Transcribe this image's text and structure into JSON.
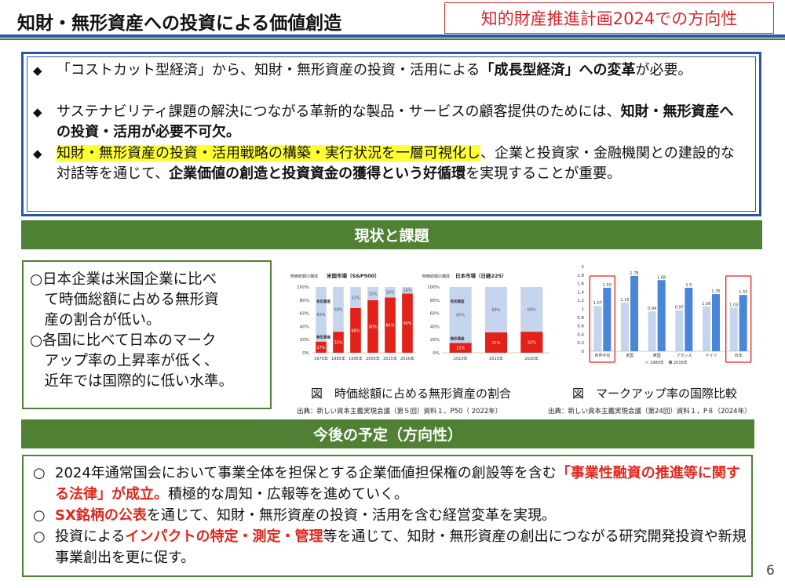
{
  "header": {
    "title": "知財・無形資産への投資による価値創造",
    "badge": "知的財産推進計画2024での方向性"
  },
  "summary": {
    "items": [
      {
        "bullet": "◆",
        "parts": [
          {
            "text": "「コストカット型経済」から、知財・無形資産の投資・活用による",
            "style": "normal"
          },
          {
            "text": "「成長型経済」への変革",
            "style": "bold"
          },
          {
            "text": "が必要。",
            "style": "normal"
          }
        ]
      },
      {
        "bullet": "◆",
        "parts": [
          {
            "text": "サステナビリティ課題の解決につながる革新的な製品・サービスの顧客提供のためには、",
            "style": "normal"
          },
          {
            "text": "知財・無形資産への投資・活用が必要不可欠。",
            "style": "bold"
          }
        ]
      },
      {
        "bullet": "◆",
        "parts": [
          {
            "text": "知財・無形資産の投資・活用戦略の構築・実行状況を一層可視化し",
            "style": "highlight"
          },
          {
            "text": "、企業と投資家・金融機関との建設的な対話等を通じて、",
            "style": "normal"
          },
          {
            "text": "企業価値の創造と投資資金の獲得という好循環",
            "style": "bold"
          },
          {
            "text": "を実現することが重要。",
            "style": "normal"
          }
        ]
      }
    ]
  },
  "section_current": {
    "label": "現状と課題"
  },
  "current_points": {
    "lines": [
      "○日本企業は米国企業に比べ",
      "　て時価総額に占める無形資",
      "　産の割合が低い。",
      "○各国に比べて日本のマーク",
      "　アップ率の上昇率が低く、",
      "　近年では国際的に低い水準。"
    ]
  },
  "figure1": {
    "caption": "図　時価総額に占める無形資産の割合",
    "source": "出典：新しい資本主義実現会議（第５回）資料１、P50（ 2022年）"
  },
  "figure2": {
    "caption": "図　マークアップ率の国際比較",
    "source": "出典：新しい資本主義実現会議（第24回）資料１，P８（2024年）"
  },
  "chart_data": [
    {
      "type": "bar",
      "title": "米国市場（S&P500）",
      "side_label": "時価総額の構成",
      "categories": [
        "1975年",
        "1985年",
        "1995年",
        "2005年",
        "2015年",
        "2020年"
      ],
      "series": [
        {
          "name": "有形資産",
          "values": [
            83,
            68,
            32,
            20,
            16,
            10
          ]
        },
        {
          "name": "無形資産",
          "values": [
            17,
            32,
            68,
            80,
            84,
            90
          ]
        }
      ],
      "bar_labels_top": [
        "83%",
        "68%",
        "32%",
        "20%",
        "16%",
        "10%"
      ],
      "bar_labels_bottom": [
        "17%",
        "32%",
        "68%",
        "80%",
        "84%",
        "90%"
      ],
      "legend_in_bar": [
        "有形資産",
        "無形資産"
      ],
      "ylim": [
        0,
        100
      ],
      "yticks": [
        "0%",
        "20%",
        "40%",
        "60%",
        "80%",
        "100%"
      ],
      "stacked": true,
      "colors": {
        "tangible": "#c5d5ee",
        "intangible": "#e32119"
      }
    },
    {
      "type": "bar",
      "title": "日本市場（日経225）",
      "side_label": "時価総額の構成",
      "categories": [
        "2010年",
        "2015年",
        "2020年"
      ],
      "series": [
        {
          "name": "有形資産",
          "values": [
            85,
            69,
            68
          ]
        },
        {
          "name": "無形資産",
          "values": [
            15,
            31,
            32
          ]
        }
      ],
      "bar_labels_top": [
        "85%",
        "69%",
        "68%"
      ],
      "bar_labels_bottom": [
        "15%",
        "31%",
        "32%"
      ],
      "legend_in_bar": [
        "有形資産",
        "無形資産"
      ],
      "ylim": [
        0,
        100
      ],
      "yticks": [
        "0%",
        "20%",
        "40%",
        "60%",
        "80%",
        "100%"
      ],
      "stacked": true,
      "colors": {
        "tangible": "#c5d5ee",
        "intangible": "#e32119"
      }
    },
    {
      "type": "bar",
      "title": "",
      "categories": [
        "世界平均",
        "米国",
        "英国",
        "フランス",
        "ドイツ",
        "日本"
      ],
      "series": [
        {
          "name": "1980年",
          "values": [
            1.07,
            1.15,
            0.94,
            0.97,
            1.06,
            1.03
          ]
        },
        {
          "name": "2016年",
          "values": [
            1.5,
            1.78,
            1.68,
            1.5,
            1.35,
            1.33
          ]
        }
      ],
      "value_labels_1980": [
        "1.07",
        "1.15",
        "0.94",
        "0.97",
        "1.06",
        "1.03"
      ],
      "value_labels_2016": [
        "1.50",
        "1.78",
        "1.68",
        "1.5",
        "1.35",
        "1.33"
      ],
      "ylim": [
        0,
        2
      ],
      "yticks": [
        "0",
        "0.2",
        "0.4",
        "0.6",
        "0.8",
        "1",
        "1.2",
        "1.4",
        "1.6",
        "1.8",
        "2"
      ],
      "highlighted": [
        "世界平均",
        "日本"
      ],
      "colors": {
        "y1980": "#c5d5ee",
        "y2016": "#4a86d8",
        "highlight": "#e32119"
      }
    }
  ],
  "section_future": {
    "label": "今後の予定（方向性）"
  },
  "future": {
    "items": [
      {
        "bullet": "○",
        "parts": [
          {
            "text": "2024年通常国会において事業全体を担保とする企業価値担保権の創設等を含む",
            "style": "normal"
          },
          {
            "text": "「事業性融資の推進等に関する法律」が成立。",
            "style": "red"
          },
          {
            "text": "積極的な周知・広報等を進めていく。",
            "style": "normal"
          }
        ]
      },
      {
        "bullet": "○",
        "parts": [
          {
            "text": "SX銘柄の公表",
            "style": "red"
          },
          {
            "text": "を通じて、知財・無形資産の投資・活用を含む経営変革を実現。",
            "style": "normal"
          }
        ]
      },
      {
        "bullet": "○",
        "parts": [
          {
            "text": "投資による",
            "style": "normal"
          },
          {
            "text": "インパクトの特定・測定・管理",
            "style": "red"
          },
          {
            "text": "等を通じて、知財・無形資産の創出につながる研究開発投資や新規事業創出を更に促す。",
            "style": "normal"
          }
        ]
      }
    ]
  },
  "page_number": "6"
}
